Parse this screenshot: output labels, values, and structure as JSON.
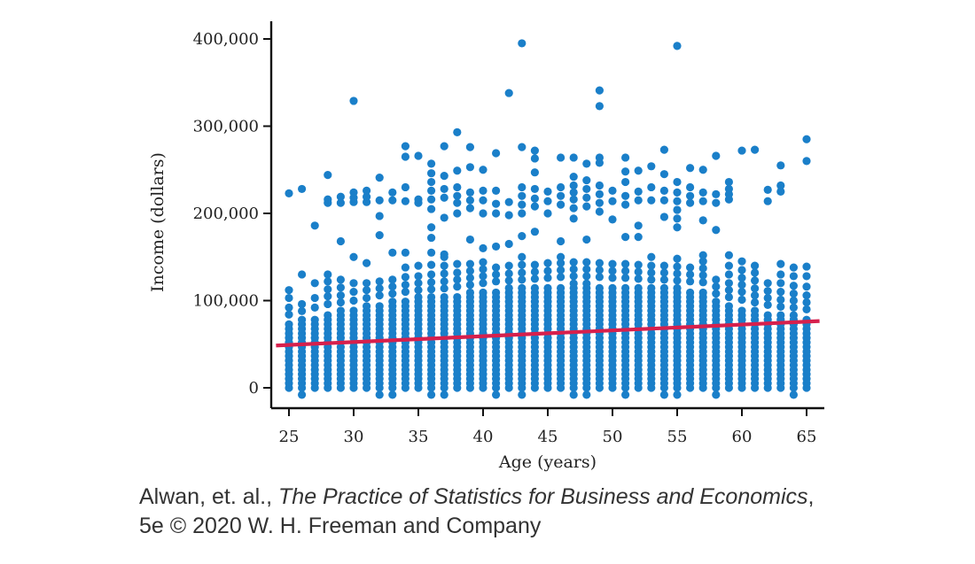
{
  "chart_data": {
    "type": "scatter",
    "xlabel": "Age (years)",
    "ylabel": "Income (dollars)",
    "xlim": [
      24,
      66
    ],
    "ylim": [
      -18000,
      420000
    ],
    "x_ticks": [
      25,
      30,
      35,
      40,
      45,
      50,
      55,
      60,
      65
    ],
    "x_tick_labels": [
      "25",
      "30",
      "35",
      "40",
      "45",
      "50",
      "55",
      "60",
      "65"
    ],
    "y_ticks": [
      0,
      100000,
      200000,
      300000,
      400000
    ],
    "y_tick_labels": [
      "0",
      "100,000",
      "200,000",
      "300,000",
      "400,000"
    ],
    "grid": false,
    "legend": false,
    "point_color": "#1a7fc9",
    "line_color": "#d6204d",
    "regression_line": {
      "x": [
        24,
        66
      ],
      "y": [
        48500,
        76500
      ]
    },
    "outliers": [
      {
        "x": 30,
        "y": 329000
      },
      {
        "x": 42,
        "y": 338000
      },
      {
        "x": 43,
        "y": 395000
      },
      {
        "x": 49,
        "y": 341000
      },
      {
        "x": 49,
        "y": 323000
      },
      {
        "x": 55,
        "y": 392000
      },
      {
        "x": 38,
        "y": 293000
      },
      {
        "x": 34,
        "y": 277000
      },
      {
        "x": 65,
        "y": 285000
      },
      {
        "x": 65,
        "y": 260000
      },
      {
        "x": 61,
        "y": 273000
      },
      {
        "x": 60,
        "y": 272000
      },
      {
        "x": 54,
        "y": 273000
      },
      {
        "x": 63,
        "y": 255000
      },
      {
        "x": 28,
        "y": 244000
      },
      {
        "x": 25,
        "y": 223000
      },
      {
        "x": 26,
        "y": 228000
      },
      {
        "x": 27,
        "y": 186000
      },
      {
        "x": 29,
        "y": 168000
      },
      {
        "x": 30,
        "y": 150000
      },
      {
        "x": 31,
        "y": 143000
      },
      {
        "x": 32,
        "y": 175000
      },
      {
        "x": 33,
        "y": 155000
      },
      {
        "x": 58,
        "y": 181000
      },
      {
        "x": 52,
        "y": 173000
      }
    ],
    "columns": [
      {
        "x": 25,
        "core_max": 75000,
        "upper": [
          84000,
          92000,
          103000,
          112000
        ],
        "cluster": []
      },
      {
        "x": 26,
        "core_max": 80000,
        "upper": [
          88000,
          96000,
          130000
        ],
        "cluster": []
      },
      {
        "x": 27,
        "core_max": 82000,
        "upper": [
          92000,
          103000,
          120000
        ],
        "cluster": []
      },
      {
        "x": 28,
        "core_max": 88000,
        "upper": [
          96000,
          105000,
          113000,
          122000,
          130000
        ],
        "cluster": [
          212000,
          216000
        ]
      },
      {
        "x": 29,
        "core_max": 90000,
        "upper": [
          98000,
          106000,
          115000,
          124000
        ],
        "cluster": [
          212000,
          219000
        ]
      },
      {
        "x": 30,
        "core_max": 92000,
        "upper": [
          100000,
          110000,
          120000
        ],
        "cluster": [
          213000,
          218000,
          224000
        ]
      },
      {
        "x": 31,
        "core_max": 95000,
        "upper": [
          103000,
          112000,
          120000
        ],
        "cluster": [
          213000,
          219000,
          226000
        ]
      },
      {
        "x": 32,
        "core_max": 98000,
        "upper": [
          106000,
          114000,
          122000
        ],
        "cluster": [
          197000,
          215000,
          241000
        ]
      },
      {
        "x": 33,
        "core_max": 100000,
        "upper": [
          108000,
          116000,
          124000
        ],
        "cluster": [
          215000,
          224000
        ]
      },
      {
        "x": 34,
        "core_max": 102000,
        "upper": [
          110000,
          118000,
          127000,
          138000,
          155000
        ],
        "cluster": [
          214000,
          230000,
          265000
        ]
      },
      {
        "x": 35,
        "core_max": 104000,
        "upper": [
          112000,
          120000,
          128000,
          140000
        ],
        "cluster": [
          212000,
          216000,
          266000
        ]
      },
      {
        "x": 36,
        "core_max": 105000,
        "upper": [
          113000,
          121000,
          130000,
          141000,
          155000
        ],
        "cluster": [
          172000,
          184000,
          205000,
          216000,
          226000,
          236000,
          246000,
          257000
        ]
      },
      {
        "x": 37,
        "core_max": 106000,
        "upper": [
          114000,
          122000,
          131000,
          140000,
          153000
        ],
        "cluster": [
          150000,
          195000,
          218000,
          228000,
          243000,
          277000
        ]
      },
      {
        "x": 38,
        "core_max": 108000,
        "upper": [
          116000,
          124000,
          132000,
          142000
        ],
        "cluster": [
          200000,
          212000,
          220000,
          230000,
          249000
        ]
      },
      {
        "x": 39,
        "core_max": 110000,
        "upper": [
          118000,
          126000,
          134000,
          142000
        ],
        "cluster": [
          170000,
          206000,
          215000,
          224000,
          253000,
          276000
        ]
      },
      {
        "x": 40,
        "core_max": 112000,
        "upper": [
          120000,
          128000,
          136000,
          144000,
          160000
        ],
        "cluster": [
          200000,
          215000,
          226000,
          250000
        ]
      },
      {
        "x": 41,
        "core_max": 114000,
        "upper": [
          122000,
          130000,
          138000
        ],
        "cluster": [
          162000,
          200000,
          211000,
          226000,
          269000
        ]
      },
      {
        "x": 42,
        "core_max": 115000,
        "upper": [
          123000,
          131000,
          140000
        ],
        "cluster": [
          165000,
          198000,
          213000
        ]
      },
      {
        "x": 43,
        "core_max": 116000,
        "upper": [
          124000,
          132000,
          141000,
          150000
        ],
        "cluster": [
          174000,
          200000,
          210000,
          220000,
          230000,
          276000
        ]
      },
      {
        "x": 44,
        "core_max": 117000,
        "upper": [
          125000,
          133000,
          141000
        ],
        "cluster": [
          179000,
          208000,
          217000,
          228000,
          247000,
          263000,
          272000
        ]
      },
      {
        "x": 45,
        "core_max": 118000,
        "upper": [
          126000,
          134000,
          143000
        ],
        "cluster": [
          200000,
          214000,
          225000
        ]
      },
      {
        "x": 46,
        "core_max": 119000,
        "upper": [
          127000,
          135000,
          143000,
          150000
        ],
        "cluster": [
          168000,
          210000,
          220000,
          230000,
          264000
        ]
      },
      {
        "x": 47,
        "core_max": 120000,
        "upper": [
          128000,
          136000,
          144000
        ],
        "cluster": [
          194000,
          206000,
          216000,
          224000,
          232000,
          242000,
          264000
        ]
      },
      {
        "x": 48,
        "core_max": 120000,
        "upper": [
          128000,
          136000,
          144000
        ],
        "cluster": [
          170000,
          208000,
          218000,
          228000,
          238000,
          257000
        ]
      },
      {
        "x": 49,
        "core_max": 119000,
        "upper": [
          127000,
          135000,
          143000
        ],
        "cluster": [
          202000,
          212000,
          222000,
          232000,
          258000,
          264000
        ]
      },
      {
        "x": 50,
        "core_max": 118000,
        "upper": [
          126000,
          134000,
          142000
        ],
        "cluster": [
          193000,
          214000,
          226000
        ]
      },
      {
        "x": 51,
        "core_max": 118000,
        "upper": [
          126000,
          134000,
          142000
        ],
        "cluster": [
          173000,
          210000,
          220000,
          236000,
          248000,
          264000
        ]
      },
      {
        "x": 52,
        "core_max": 117000,
        "upper": [
          125000,
          133000,
          141000
        ],
        "cluster": [
          186000,
          215000,
          225000,
          249000
        ]
      },
      {
        "x": 53,
        "core_max": 116000,
        "upper": [
          124000,
          132000,
          140000,
          150000
        ],
        "cluster": [
          215000,
          230000,
          254000
        ]
      },
      {
        "x": 54,
        "core_max": 116000,
        "upper": [
          124000,
          132000,
          140000
        ],
        "cluster": [
          196000,
          215000,
          226000,
          245000
        ]
      },
      {
        "x": 55,
        "core_max": 115000,
        "upper": [
          123000,
          131000,
          139000,
          148000
        ],
        "cluster": [
          184000,
          194000,
          204000,
          214000,
          224000,
          236000
        ]
      },
      {
        "x": 56,
        "core_max": 114000,
        "upper": [
          122000,
          130000,
          138000
        ],
        "cluster": [
          212000,
          220000,
          230000,
          252000
        ]
      },
      {
        "x": 57,
        "core_max": 113000,
        "upper": [
          121000,
          129000,
          137000,
          145000,
          152000
        ],
        "cluster": [
          192000,
          214000,
          224000,
          250000
        ]
      },
      {
        "x": 58,
        "core_max": 100000,
        "upper": [
          108000,
          116000,
          124000
        ],
        "cluster": [
          212000,
          222000,
          266000
        ]
      },
      {
        "x": 59,
        "core_max": 96000,
        "upper": [
          104000,
          112000,
          120000,
          130000,
          140000,
          152000
        ],
        "cluster": [
          216000,
          222000,
          228000,
          236000
        ]
      },
      {
        "x": 60,
        "core_max": 93000,
        "upper": [
          101000,
          110000,
          118000,
          126000,
          135000,
          145000
        ],
        "cluster": []
      },
      {
        "x": 61,
        "core_max": 90000,
        "upper": [
          98000,
          106000,
          114000,
          123000,
          132000,
          140000
        ],
        "cluster": []
      },
      {
        "x": 62,
        "core_max": 87000,
        "upper": [
          95000,
          103000,
          111000,
          120000
        ],
        "cluster": [
          214000,
          227000
        ]
      },
      {
        "x": 63,
        "core_max": 85000,
        "upper": [
          93000,
          101000,
          110000,
          120000,
          130000,
          142000
        ],
        "cluster": [
          225000,
          232000
        ]
      },
      {
        "x": 64,
        "core_max": 84000,
        "upper": [
          92000,
          100000,
          108000,
          117000,
          128000,
          138000
        ],
        "cluster": []
      },
      {
        "x": 65,
        "core_max": 82000,
        "upper": [
          90000,
          98000,
          106000,
          116000,
          128000,
          139000
        ],
        "cluster": []
      }
    ]
  },
  "caption": {
    "authors": "Alwan, et. al., ",
    "book_title": "The Practice of Statistics for Business and Economics",
    "trailing_comma": ",",
    "line2": "5e © 2020 W. H. Freeman and Company"
  }
}
